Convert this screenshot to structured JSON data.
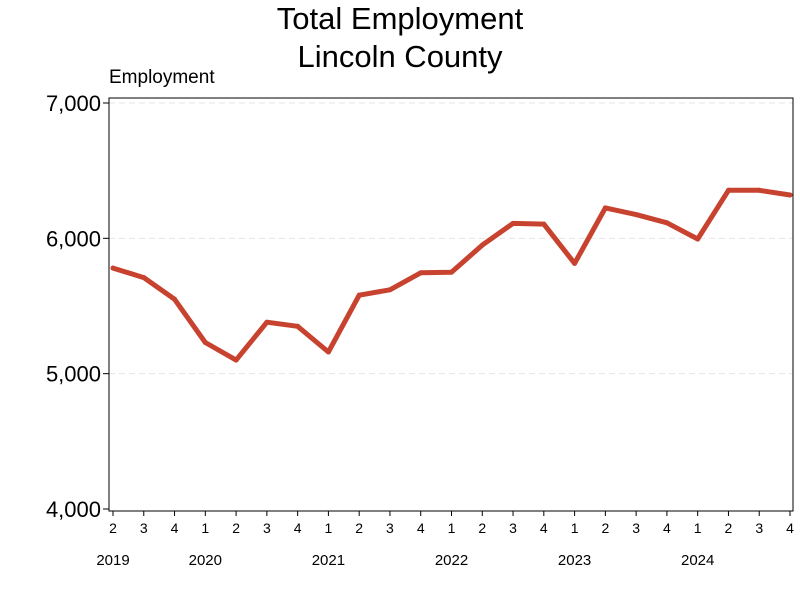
{
  "chart_data": {
    "type": "line",
    "title": [
      "Total Employment",
      "Lincoln County"
    ],
    "ylabel": "Employment",
    "xlabel": "",
    "ylim": [
      4000,
      7000
    ],
    "yticks": [
      4000,
      5000,
      6000,
      7000
    ],
    "ytick_labels": [
      "4,000",
      "5,000",
      "6,000",
      "7,000"
    ],
    "grid": true,
    "line_color": "#C8432F",
    "x": [
      "2019 Q2",
      "2019 Q3",
      "2019 Q4",
      "2020 Q1",
      "2020 Q2",
      "2020 Q3",
      "2020 Q4",
      "2021 Q1",
      "2021 Q2",
      "2021 Q3",
      "2021 Q4",
      "2022 Q1",
      "2022 Q2",
      "2022 Q3",
      "2022 Q4",
      "2023 Q1",
      "2023 Q2",
      "2023 Q3",
      "2023 Q4",
      "2024 Q1",
      "2024 Q2",
      "2024 Q3",
      "2024 Q4"
    ],
    "quarter_labels": [
      "2",
      "3",
      "4",
      "1",
      "2",
      "3",
      "4",
      "1",
      "2",
      "3",
      "4",
      "1",
      "2",
      "3",
      "4",
      "1",
      "2",
      "3",
      "4",
      "1",
      "2",
      "3",
      "4"
    ],
    "year_labels": [
      {
        "label": "2019",
        "index": 0
      },
      {
        "label": "2020",
        "index": 3
      },
      {
        "label": "2021",
        "index": 7
      },
      {
        "label": "2022",
        "index": 11
      },
      {
        "label": "2023",
        "index": 15
      },
      {
        "label": "2024",
        "index": 19
      }
    ],
    "series": [
      {
        "values": [
          5780,
          5710,
          5550,
          5230,
          5100,
          5380,
          5350,
          5160,
          5580,
          5620,
          5745,
          5750,
          5950,
          6110,
          6105,
          5815,
          6225,
          6175,
          6115,
          5995,
          6355,
          6355,
          6320
        ]
      }
    ]
  }
}
